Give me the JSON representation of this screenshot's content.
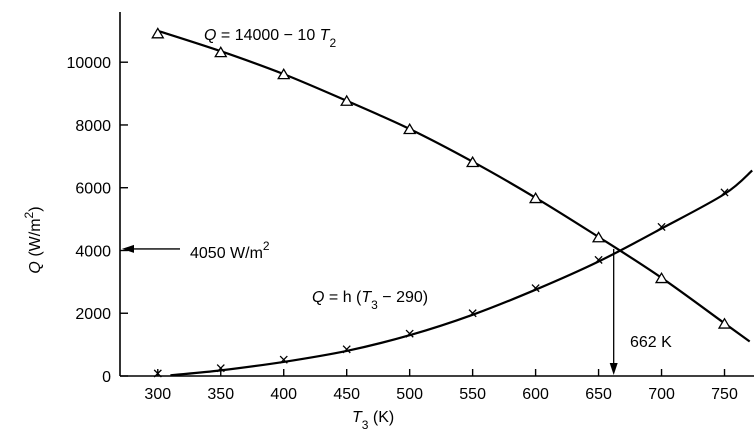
{
  "chart_data": {
    "type": "line",
    "xlabel": {
      "main": "T",
      "sub": "3",
      "unit": " (K)"
    },
    "ylabel": {
      "main": "Q",
      "unit": " (W/m",
      "sup": "2",
      "close": ")"
    },
    "xlim": [
      270,
      775
    ],
    "ylim": [
      0,
      11600
    ],
    "xticks": [
      300,
      350,
      400,
      450,
      500,
      550,
      600,
      650,
      700,
      750
    ],
    "yticks": [
      0,
      2000,
      4000,
      6000,
      8000,
      10000
    ],
    "series": [
      {
        "name": "Q = 14000 − 10 T2",
        "marker": "triangle",
        "x": [
          300,
          350,
          400,
          450,
          500,
          550,
          600,
          650,
          700,
          750
        ],
        "y": [
          10900,
          10300,
          9600,
          8750,
          7850,
          6800,
          5650,
          4400,
          3100,
          1650
        ],
        "curve_x": [
          300,
          350,
          400,
          450,
          500,
          550,
          600,
          650,
          700,
          750,
          770
        ],
        "curve_y": [
          11000,
          10350,
          9620,
          8770,
          7870,
          6830,
          5680,
          4430,
          3130,
          1680,
          1100
        ]
      },
      {
        "name": "Q = h (T3 − 290)",
        "marker": "x",
        "x": [
          300,
          350,
          400,
          450,
          500,
          550,
          600,
          650,
          700,
          750
        ],
        "y": [
          80,
          250,
          520,
          850,
          1350,
          2000,
          2800,
          3700,
          4750,
          5850
        ],
        "curve_x": [
          310,
          350,
          400,
          450,
          500,
          550,
          600,
          650,
          700,
          750,
          772
        ],
        "curve_y": [
          20,
          180,
          450,
          800,
          1300,
          1950,
          2750,
          3650,
          4700,
          5800,
          6550
        ]
      }
    ],
    "annotations": {
      "curve1_label": {
        "pre": "Q",
        "mid": " = 14000 − 10 ",
        "var": "T",
        "sub": "2"
      },
      "curve2_label": {
        "pre": "Q",
        "mid": " = h (",
        "var": "T",
        "sub": "3",
        "post": " − 290)"
      },
      "flux_label": {
        "text": "4050 W/m",
        "sup": "2"
      },
      "flux_value": 4050,
      "temp_label": "662 K",
      "temp_value": 662
    }
  }
}
